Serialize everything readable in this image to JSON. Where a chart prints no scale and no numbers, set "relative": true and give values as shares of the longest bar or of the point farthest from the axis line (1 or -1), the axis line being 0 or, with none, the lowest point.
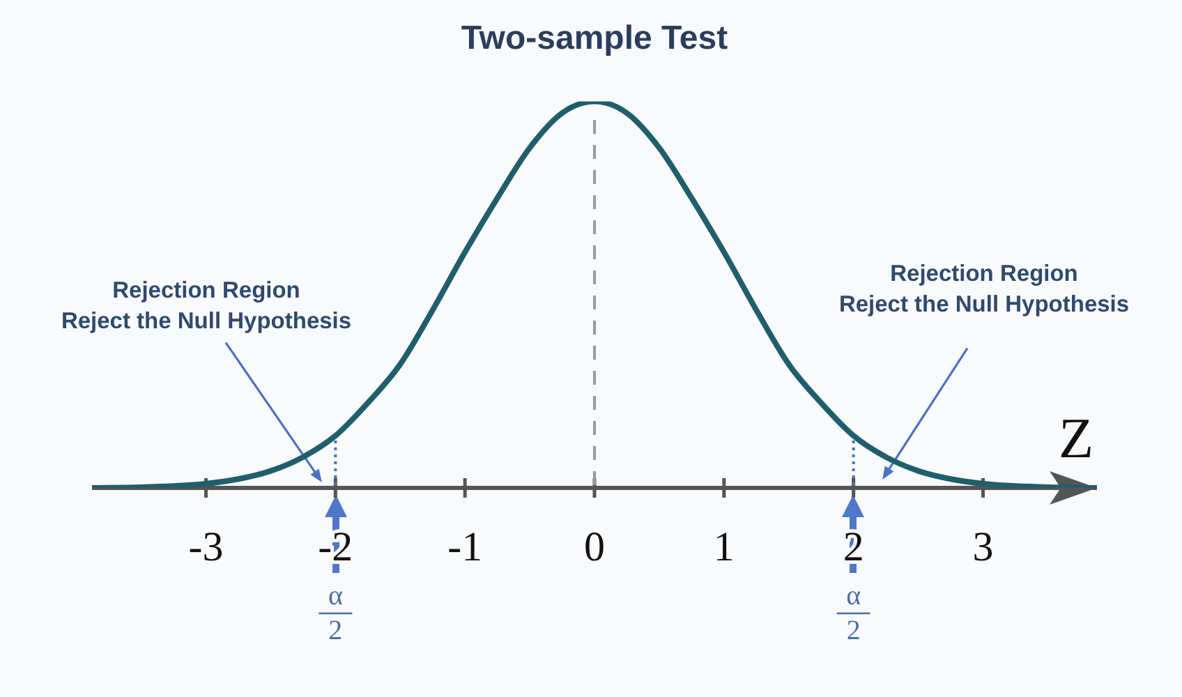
{
  "chart_data": {
    "type": "line",
    "title": "Two-sample Test",
    "xlabel": "Z",
    "relative": true,
    "x": [
      -3.88,
      -3.5,
      -3.25,
      -3,
      -2.75,
      -2.5,
      -2.25,
      -2,
      -1.75,
      -1.5,
      -1.25,
      -1,
      -0.75,
      -0.5,
      -0.25,
      0,
      0.25,
      0.5,
      0.75,
      1,
      1.25,
      1.5,
      1.75,
      2,
      2.25,
      2.5,
      2.75,
      3,
      3.25,
      3.5,
      3.88
    ],
    "series": [
      {
        "color": "#1f5e6d",
        "values": [
          0,
          0.002,
          0.005,
          0.011,
          0.023,
          0.044,
          0.08,
          0.135,
          0.22,
          0.32,
          0.46,
          0.61,
          0.75,
          0.88,
          0.97,
          1,
          0.97,
          0.88,
          0.75,
          0.61,
          0.46,
          0.32,
          0.22,
          0.135,
          0.08,
          0.044,
          0.023,
          0.011,
          0.005,
          0.002,
          0
        ]
      }
    ],
    "xlim": [
      -3.88,
      3.88
    ],
    "xticks": [
      -3,
      -2,
      -1,
      0,
      1,
      2,
      3
    ],
    "ref_lines": [
      {
        "axis": "x",
        "value": 0,
        "color": "#9a9a9a",
        "line_style": "dashed"
      },
      {
        "axis": "x",
        "value": -2,
        "color": "#4a72c4",
        "line_style": "dotted"
      },
      {
        "axis": "x",
        "value": 2,
        "color": "#4a72c4",
        "line_style": "dotted"
      }
    ],
    "annotations": [
      "Rejection Region\nReject the Null Hypothesis",
      "Rejection Region\nReject the Null Hypothesis",
      "α\n2",
      "α\n2"
    ]
  }
}
